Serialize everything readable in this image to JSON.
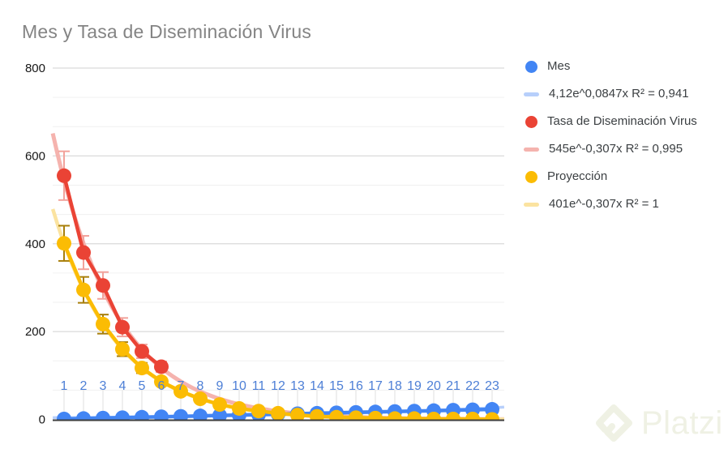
{
  "title": "Mes y Tasa de Diseminación Virus",
  "watermark": {
    "text": "Platzi",
    "color": "#eff1e4"
  },
  "legend": {
    "items": [
      {
        "label": "Mes",
        "swatch": "circle",
        "color": "#4285f4"
      },
      {
        "label": "4,12e^0,0847x R² = 0,941",
        "swatch": "line",
        "color": "#b7cffb"
      },
      {
        "label": "Tasa de Diseminación Virus",
        "swatch": "circle",
        "color": "#ea4335"
      },
      {
        "label": "545e^-0,307x R² = 0,995",
        "swatch": "line",
        "color": "#f5b3ae"
      },
      {
        "label": "Proyección",
        "swatch": "circle",
        "color": "#fbbc04"
      },
      {
        "label": "401e^-0,307x R² = 1",
        "swatch": "line",
        "color": "#fbe3a0"
      }
    ]
  },
  "chart_data": {
    "type": "line",
    "title": "Mes y Tasa de Diseminación Virus",
    "x": [
      1,
      2,
      3,
      4,
      5,
      6,
      7,
      8,
      9,
      10,
      11,
      12,
      13,
      14,
      15,
      16,
      17,
      18,
      19,
      20,
      21,
      22,
      23
    ],
    "xlabels": [
      "1",
      "2",
      "3",
      "4",
      "5",
      "6",
      "7",
      "8",
      "9",
      "10",
      "11",
      "12",
      "13",
      "14",
      "15",
      "16",
      "17",
      "18",
      "19",
      "20",
      "21",
      "22",
      "23"
    ],
    "xlabel_color": "#4d7fd6",
    "series": [
      {
        "name": "Mes",
        "color": "#4285f4",
        "values": [
          1,
          2,
          3,
          4,
          5,
          6,
          7,
          8,
          9,
          10,
          11,
          12,
          13,
          14,
          15,
          16,
          17,
          18,
          19,
          20,
          21,
          22,
          23
        ],
        "error_color": null
      },
      {
        "name": "Tasa de Diseminación Virus",
        "color": "#ea4335",
        "values": [
          555,
          380,
          305,
          210,
          155,
          120
        ],
        "error_color": "#f2a39c"
      },
      {
        "name": "Proyección",
        "color": "#fbbc04",
        "values": [
          401,
          295,
          217,
          160,
          117,
          86,
          64,
          47,
          34,
          25,
          19,
          14,
          10,
          7,
          5,
          4,
          3,
          2,
          2,
          1,
          1,
          1,
          0
        ],
        "error_color": "#a87f0a"
      }
    ],
    "trendlines": [
      {
        "for": "Mes",
        "label": "4,12e^0,0847x R² = 0,941",
        "a": 4.12,
        "b": 0.0847,
        "color": "#b7cffb",
        "width": 3.5
      },
      {
        "for": "Tasa de Diseminación Virus",
        "label": "545e^-0,307x R² = 0,995",
        "a": 545,
        "b": -0.307,
        "color": "#f5b3ae",
        "width": 5
      },
      {
        "for": "Proyección",
        "label": "401e^-0,307x R² = 1",
        "a": 401,
        "b": -0.307,
        "color": "#fbe3a0",
        "width": 4.5
      }
    ],
    "error_bars": {
      "type": "percent",
      "value": 10
    },
    "yaxis": {
      "min": 0,
      "max": 800,
      "major_ticks": [
        0,
        200,
        400,
        600,
        800
      ],
      "minor_divisions_per_major": 3
    },
    "grid": true,
    "legend_position": "right"
  }
}
